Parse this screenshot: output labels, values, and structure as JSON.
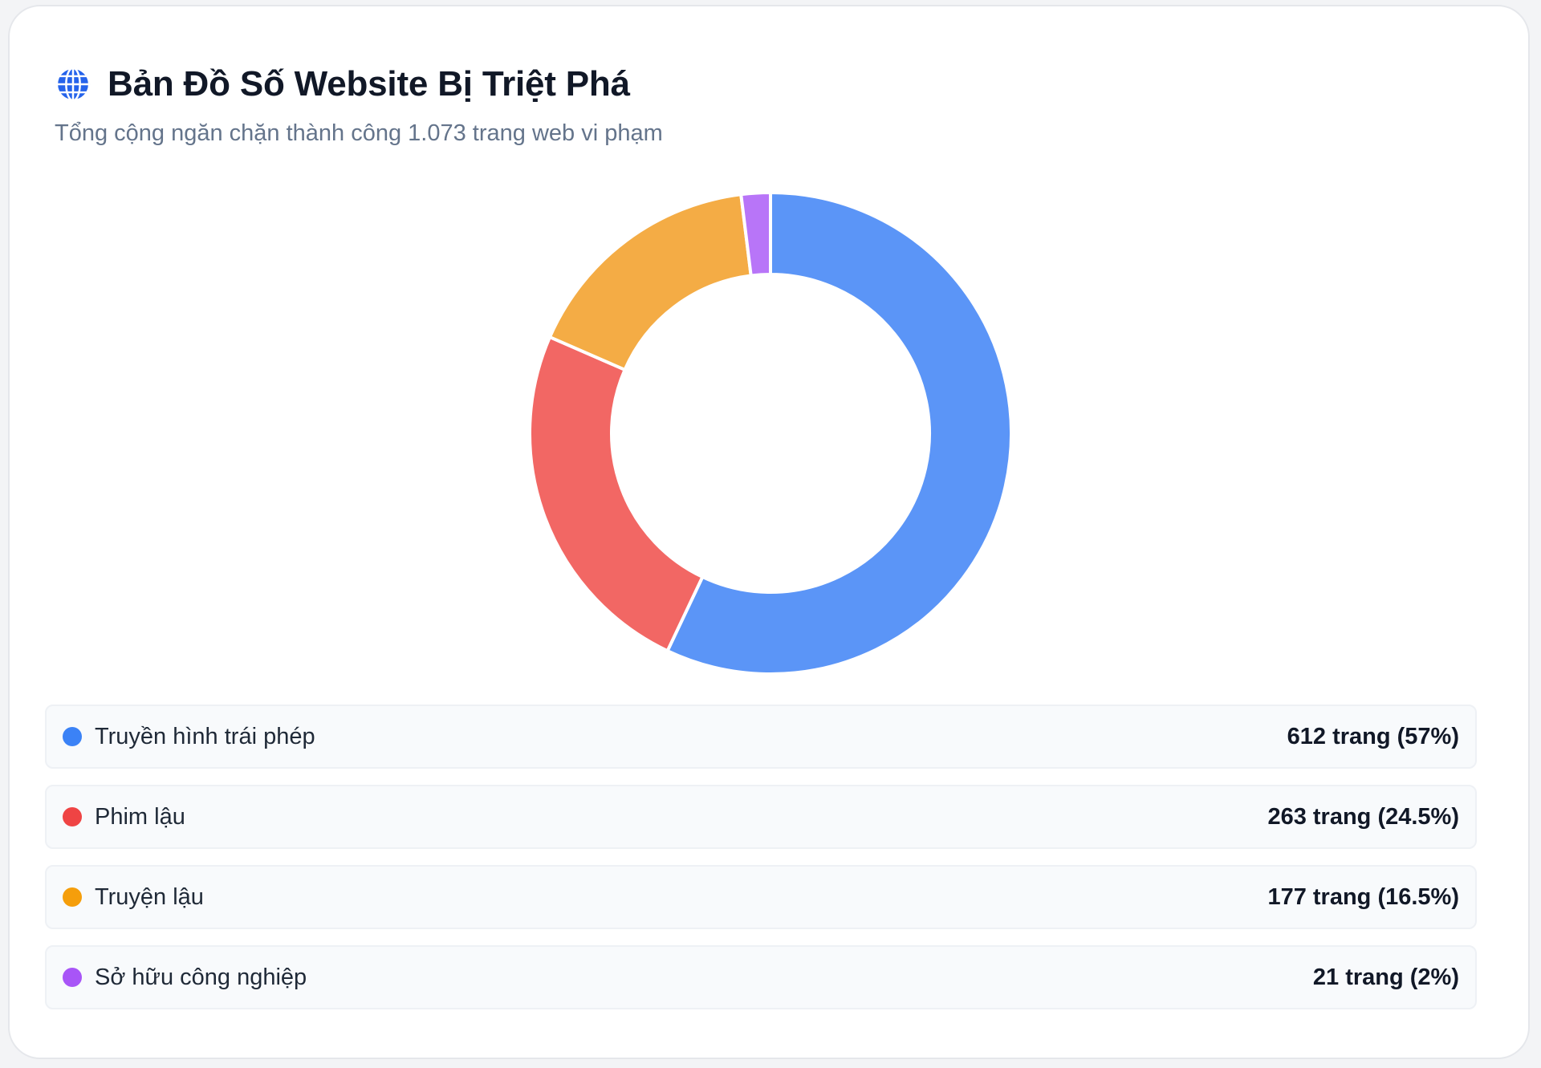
{
  "header": {
    "title": "Bản Đồ Số Website Bị Triệt Phá",
    "subtitle": "Tổng cộng ngăn chặn thành công 1.073 trang web vi phạm",
    "icon": "globe-icon"
  },
  "chart_data": {
    "type": "pie",
    "donut": true,
    "categories": [
      "Truyền hình trái phép",
      "Phim lậu",
      "Truyện lậu",
      "Sở hữu công nghiệp"
    ],
    "values": [
      612,
      263,
      177,
      21
    ],
    "slice_colors": [
      "#5b95f7",
      "#f26764",
      "#f4ac45",
      "#b875f8"
    ],
    "total": 1073
  },
  "legend": {
    "items": [
      {
        "label": "Truyền hình trái phép",
        "value_text": "612 trang (57%)",
        "color": "#3b82f6"
      },
      {
        "label": "Phim lậu",
        "value_text": "263 trang (24.5%)",
        "color": "#ef4444"
      },
      {
        "label": "Truyện lậu",
        "value_text": "177 trang (16.5%)",
        "color": "#f59e0b"
      },
      {
        "label": "Sở hữu công nghiệp",
        "value_text": "21 trang (2%)",
        "color": "#a855f7"
      }
    ]
  }
}
